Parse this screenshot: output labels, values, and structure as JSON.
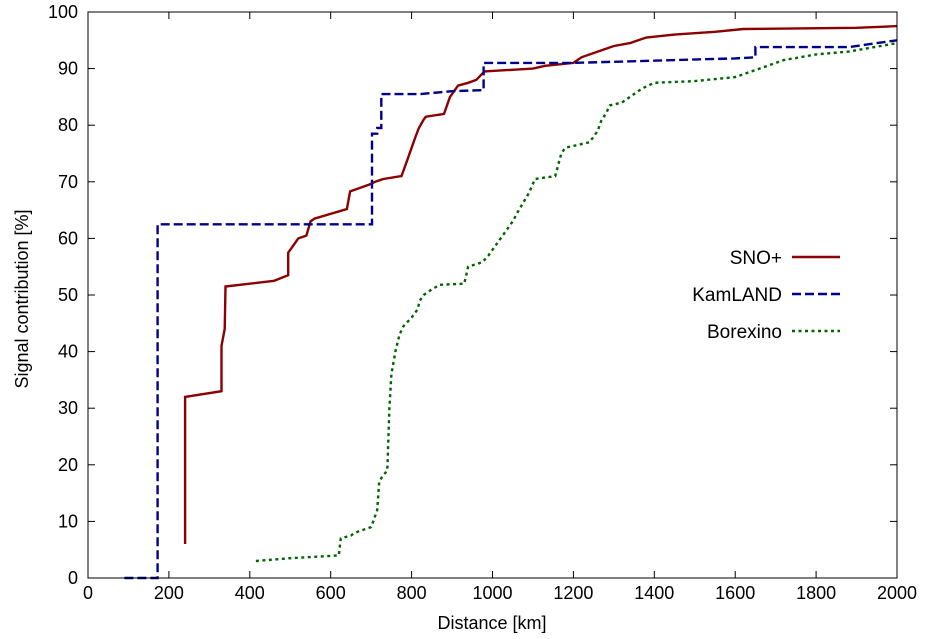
{
  "chart_data": {
    "type": "line",
    "xlabel": "Distance [km]",
    "ylabel": "Signal contribution [%]",
    "xlim": [
      0,
      2000
    ],
    "ylim": [
      0,
      100
    ],
    "xticks": [
      "0",
      "200",
      "400",
      "600",
      "800",
      "1000",
      "1200",
      "1400",
      "1600",
      "1800",
      "2000"
    ],
    "yticks": [
      "0",
      "10",
      "20",
      "30",
      "40",
      "50",
      "60",
      "70",
      "80",
      "90",
      "100"
    ],
    "grid": false,
    "legend_position": "right",
    "series": [
      {
        "name": "SNO+",
        "color": "#8b0000",
        "dash": "solid",
        "points": [
          [
            240,
            6
          ],
          [
            240,
            32
          ],
          [
            330,
            33
          ],
          [
            330,
            41
          ],
          [
            338,
            44
          ],
          [
            340,
            51.5
          ],
          [
            460,
            52.5
          ],
          [
            495,
            53.5
          ],
          [
            495,
            57.5
          ],
          [
            505,
            58.5
          ],
          [
            520,
            60
          ],
          [
            540,
            60.5
          ],
          [
            550,
            63
          ],
          [
            560,
            63.5
          ],
          [
            640,
            65.2
          ],
          [
            648,
            68.3
          ],
          [
            695,
            69.5
          ],
          [
            710,
            70
          ],
          [
            730,
            70.5
          ],
          [
            775,
            71
          ],
          [
            790,
            74
          ],
          [
            800,
            76
          ],
          [
            810,
            78
          ],
          [
            818,
            79.5
          ],
          [
            830,
            81
          ],
          [
            835,
            81.5
          ],
          [
            880,
            82
          ],
          [
            895,
            85
          ],
          [
            905,
            86
          ],
          [
            915,
            87
          ],
          [
            940,
            87.5
          ],
          [
            960,
            88
          ],
          [
            980,
            89.5
          ],
          [
            1100,
            90
          ],
          [
            1130,
            90.5
          ],
          [
            1200,
            91
          ],
          [
            1220,
            92
          ],
          [
            1260,
            93
          ],
          [
            1300,
            94
          ],
          [
            1340,
            94.5
          ],
          [
            1380,
            95.5
          ],
          [
            1450,
            96
          ],
          [
            1550,
            96.5
          ],
          [
            1620,
            97
          ],
          [
            1900,
            97.2
          ],
          [
            2000,
            97.5
          ]
        ]
      },
      {
        "name": "KamLAND",
        "color": "#00008b",
        "dash": "dashed",
        "points": [
          [
            90,
            0
          ],
          [
            172,
            0
          ],
          [
            172,
            62.5
          ],
          [
            702,
            62.5
          ],
          [
            702,
            78.5
          ],
          [
            715,
            78.5
          ],
          [
            715,
            79.5
          ],
          [
            725,
            79.5
          ],
          [
            725,
            85.5
          ],
          [
            820,
            85.5
          ],
          [
            900,
            86
          ],
          [
            978,
            86.2
          ],
          [
            978,
            91
          ],
          [
            1200,
            91
          ],
          [
            1600,
            91.8
          ],
          [
            1650,
            92
          ],
          [
            1650,
            93.8
          ],
          [
            1880,
            93.8
          ],
          [
            1950,
            94.5
          ],
          [
            2000,
            95
          ]
        ]
      },
      {
        "name": "Borexino",
        "color": "#006400",
        "dash": "dotted",
        "points": [
          [
            415,
            3
          ],
          [
            500,
            3.5
          ],
          [
            620,
            4
          ],
          [
            625,
            7
          ],
          [
            650,
            7.5
          ],
          [
            660,
            8
          ],
          [
            700,
            9
          ],
          [
            705,
            10
          ],
          [
            715,
            12
          ],
          [
            720,
            17
          ],
          [
            728,
            18
          ],
          [
            740,
            19
          ],
          [
            745,
            30
          ],
          [
            750,
            36
          ],
          [
            760,
            40
          ],
          [
            770,
            43
          ],
          [
            780,
            44.5
          ],
          [
            800,
            46
          ],
          [
            815,
            47.5
          ],
          [
            820,
            49
          ],
          [
            830,
            50
          ],
          [
            850,
            51
          ],
          [
            870,
            51.8
          ],
          [
            930,
            52
          ],
          [
            940,
            55
          ],
          [
            975,
            55.8
          ],
          [
            990,
            57
          ],
          [
            1040,
            62
          ],
          [
            1050,
            63
          ],
          [
            1065,
            65
          ],
          [
            1090,
            68
          ],
          [
            1105,
            70.5
          ],
          [
            1155,
            71
          ],
          [
            1170,
            75
          ],
          [
            1180,
            76
          ],
          [
            1210,
            76.5
          ],
          [
            1240,
            77
          ],
          [
            1260,
            79
          ],
          [
            1270,
            81
          ],
          [
            1280,
            82
          ],
          [
            1290,
            83.5
          ],
          [
            1320,
            84
          ],
          [
            1340,
            85
          ],
          [
            1370,
            86.5
          ],
          [
            1400,
            87.5
          ],
          [
            1500,
            87.8
          ],
          [
            1600,
            88.5
          ],
          [
            1640,
            89.5
          ],
          [
            1660,
            90
          ],
          [
            1680,
            90.5
          ],
          [
            1720,
            91.5
          ],
          [
            1760,
            92
          ],
          [
            1800,
            92.5
          ],
          [
            1880,
            93
          ],
          [
            1920,
            93.5
          ],
          [
            1960,
            94
          ],
          [
            2000,
            94.5
          ]
        ]
      }
    ]
  }
}
